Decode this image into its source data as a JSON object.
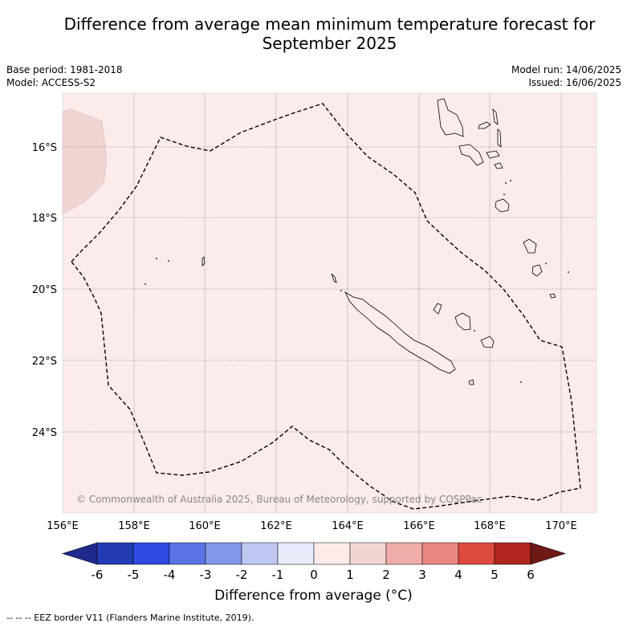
{
  "title_line1": "Difference from average mean minimum temperature forecast for",
  "title_line2": "September 2025",
  "meta": {
    "base_period": "Base period: 1981-2018",
    "model": "Model: ACCESS-S2",
    "model_run": "Model run: 14/06/2025",
    "issued": "Issued: 16/06/2025"
  },
  "map": {
    "lon_labels": [
      "156°E",
      "158°E",
      "160°E",
      "162°E",
      "164°E",
      "166°E",
      "168°E",
      "170°E"
    ],
    "lat_labels": [
      "16°S",
      "18°S",
      "20°S",
      "22°S",
      "24°S"
    ],
    "background_class_color": "#fbebea",
    "warmer_patch_color": "#f0d5d3",
    "copyright": "© Commonwealth of Australia 2025, Bureau of Meteorology, supported by COSPPac"
  },
  "colorbar": {
    "ticks": [
      "-6",
      "-5",
      "-4",
      "-3",
      "-2",
      "-1",
      "0",
      "1",
      "2",
      "3",
      "4",
      "5",
      "6"
    ],
    "colors": [
      "#1f2a8c",
      "#223cb3",
      "#2e4ae0",
      "#5a74e6",
      "#8396ea",
      "#c0c7f2",
      "#e8ebfa",
      "#fcebe8",
      "#f0d5d3",
      "#f0aca8",
      "#e8877f",
      "#dd4a3e",
      "#b0261f",
      "#6e1a16"
    ],
    "label": "Difference from average (°C)"
  },
  "source_note": "--  --  -- EEZ border V11 (Flanders Marine Institute, 2019)."
}
